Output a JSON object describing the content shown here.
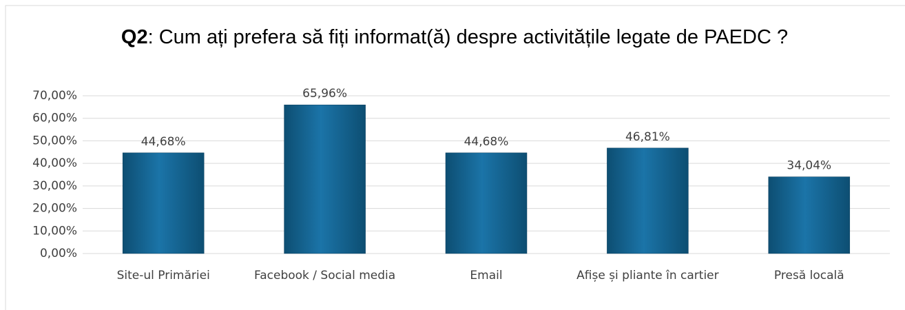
{
  "chart_data": {
    "type": "bar",
    "title_bold": "Q2",
    "title": ": Cum ați prefera să fiți informat(ă) despre activitățile legate de PAEDC ?",
    "categories": [
      "Site-ul Primăriei",
      "Facebook / Social media",
      "Email",
      "Afișe și pliante în cartier",
      "Presă locală"
    ],
    "values": [
      44.68,
      65.96,
      44.68,
      46.81,
      34.04
    ],
    "value_labels": [
      "44,68%",
      "65,96%",
      "44,68%",
      "46,81%",
      "34,04%"
    ],
    "color": "#1a6fa0",
    "ylim": [
      0,
      70
    ],
    "yticks": [
      {
        "value": 0,
        "label": "0,00%"
      },
      {
        "value": 10,
        "label": "10,00%"
      },
      {
        "value": 20,
        "label": "20,00%"
      },
      {
        "value": 30,
        "label": "30,00%"
      },
      {
        "value": 40,
        "label": "40,00%"
      },
      {
        "value": 50,
        "label": "50,00%"
      },
      {
        "value": 60,
        "label": "60,00%"
      },
      {
        "value": 70,
        "label": "70,00%"
      }
    ],
    "grid": true
  }
}
